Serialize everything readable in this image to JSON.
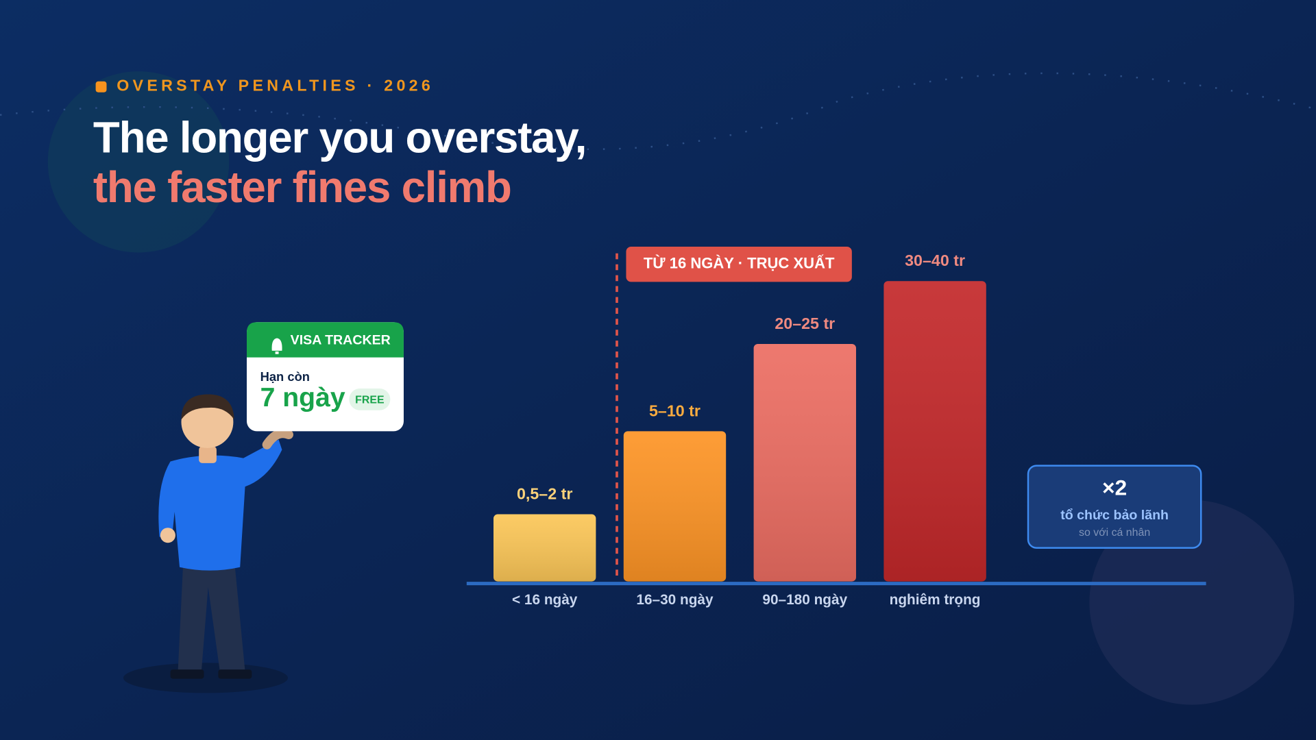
{
  "header": {
    "eyebrow": "OVERSTAY PENALTIES · 2026",
    "title_line1": "The longer you overstay,",
    "title_line2": "the faster fines climb"
  },
  "chart_data": {
    "type": "bar",
    "scale": "sqrt",
    "categories": [
      "< 16 ngày",
      "16–30 ngày",
      "90–180 ngày",
      "nghiêm trọng"
    ],
    "values": [
      2,
      10,
      25,
      40
    ],
    "value_labels": [
      "0,5–2 tr",
      "5–10 tr",
      "20–25 tr",
      "30–40 tr"
    ],
    "colors": [
      "#fbc657",
      "#fd9425",
      "#ec6d62",
      "#c3282a"
    ],
    "label_colors": [
      "#fcd27a",
      "#fdac3f",
      "#f08a80",
      "#f08a80"
    ],
    "ylim": [
      0,
      40
    ],
    "annotation": "TỪ 16 NGÀY · TRỤC XUẤT"
  },
  "tracker": {
    "title": "VISA TRACKER",
    "caption": "Hạn còn",
    "days": "7 ngày",
    "badge": "FREE"
  },
  "callout": {
    "multiplier": "×2",
    "label": "tổ chức bảo lãnh",
    "note": "so với cá nhân"
  }
}
